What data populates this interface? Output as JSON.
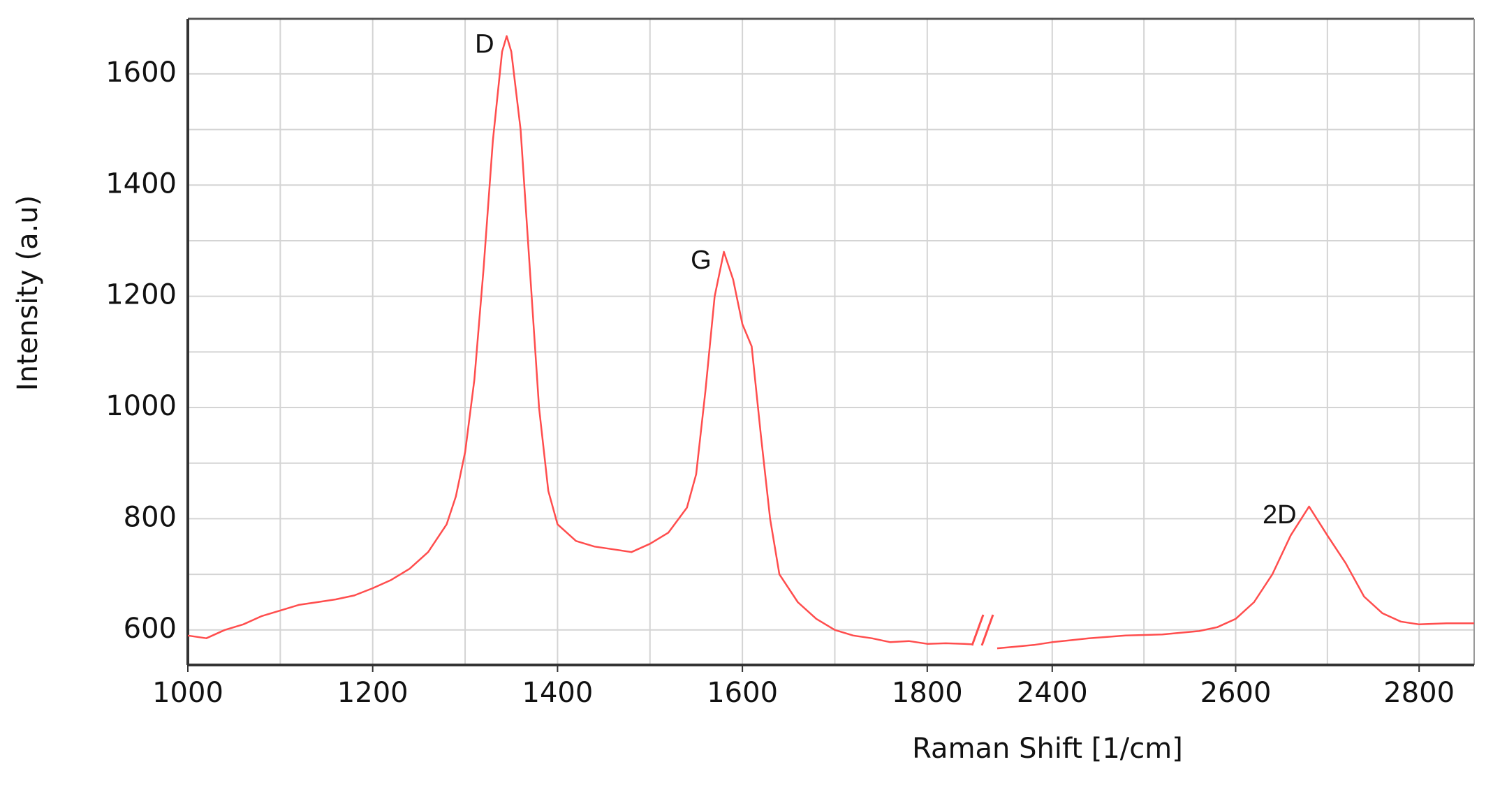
{
  "chart_data": {
    "type": "line",
    "xlabel": "Raman Shift [1/cm]",
    "ylabel": "Intensity (a.u)",
    "ylim": [
      537,
      1699
    ],
    "yticks": [
      600,
      800,
      1000,
      1200,
      1400,
      1600
    ],
    "y_minor_ticks": [
      700,
      900,
      1100,
      1300,
      1500
    ],
    "grid": true,
    "color": "#ff4d4d",
    "x_segments": [
      {
        "xlim": [
          1000,
          1850
        ],
        "xticks": [
          1000,
          1200,
          1400,
          1600,
          1800
        ],
        "x_minor_ticks": [
          1100,
          1300,
          1500,
          1700
        ]
      },
      {
        "xlim": [
          2340,
          2860
        ],
        "xticks": [
          2400,
          2600,
          2800
        ],
        "x_minor_ticks": [
          2500,
          2700
        ]
      }
    ],
    "series": [
      {
        "segment": 0,
        "x": [
          1000,
          1020,
          1040,
          1060,
          1080,
          1100,
          1120,
          1140,
          1160,
          1180,
          1200,
          1220,
          1240,
          1260,
          1280,
          1290,
          1300,
          1310,
          1320,
          1330,
          1340,
          1345,
          1350,
          1360,
          1370,
          1380,
          1390,
          1400,
          1420,
          1440,
          1460,
          1480,
          1500,
          1520,
          1540,
          1550,
          1560,
          1570,
          1580,
          1590,
          1600,
          1610,
          1620,
          1630,
          1640,
          1660,
          1680,
          1700,
          1720,
          1740,
          1760,
          1780,
          1800,
          1820,
          1840,
          1850
        ],
        "values": [
          590,
          585,
          600,
          610,
          625,
          635,
          645,
          650,
          655,
          662,
          675,
          690,
          710,
          740,
          790,
          840,
          920,
          1050,
          1250,
          1480,
          1640,
          1668,
          1640,
          1500,
          1250,
          1000,
          850,
          790,
          760,
          750,
          745,
          740,
          755,
          775,
          820,
          880,
          1030,
          1200,
          1280,
          1230,
          1150,
          1110,
          950,
          800,
          700,
          650,
          620,
          600,
          590,
          585,
          578,
          580,
          575,
          576,
          575,
          574
        ]
      },
      {
        "segment": 1,
        "x": [
          2340,
          2360,
          2380,
          2400,
          2440,
          2480,
          2520,
          2560,
          2580,
          2600,
          2620,
          2640,
          2660,
          2680,
          2700,
          2720,
          2740,
          2760,
          2780,
          2800,
          2830,
          2860
        ],
        "values": [
          567,
          570,
          573,
          578,
          585,
          590,
          592,
          598,
          605,
          620,
          650,
          700,
          770,
          822,
          770,
          720,
          660,
          630,
          615,
          610,
          612,
          612
        ]
      }
    ],
    "annotations": [
      {
        "text": "D",
        "x": 1345,
        "y": 1668,
        "segment": 0
      },
      {
        "text": "G",
        "x": 1580,
        "y": 1280,
        "segment": 0
      },
      {
        "text": "2D",
        "x": 2680,
        "y": 822,
        "segment": 1
      }
    ]
  }
}
